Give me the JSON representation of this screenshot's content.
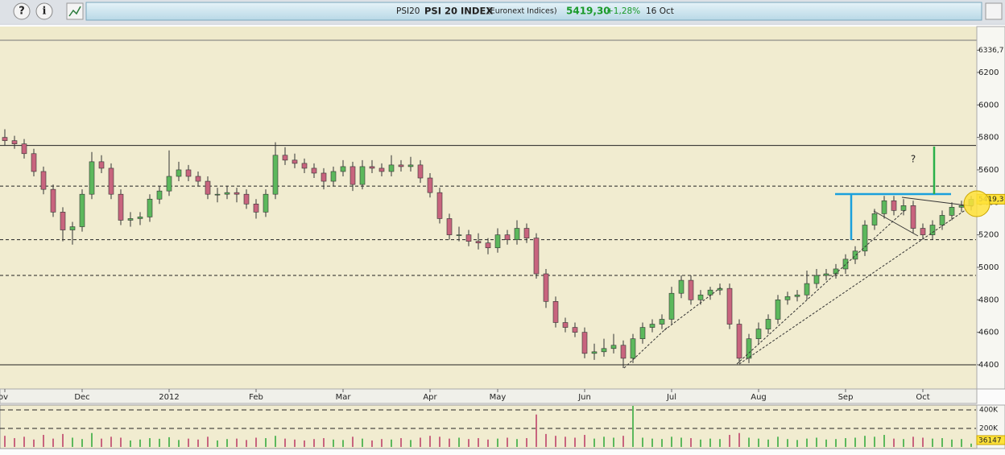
{
  "toolbar": {
    "help": "?",
    "info": "i"
  },
  "header": {
    "ticker": "PSI20",
    "name": "PSI 20 INDEX",
    "exchange": "(Euronext Indices)",
    "price": "5419,30",
    "change": "+1,28%",
    "date": "16 Oct"
  },
  "chart_data": {
    "type": "candlestick",
    "annotation": "?",
    "categories": [
      "ov",
      null,
      null,
      null,
      null,
      null,
      null,
      null,
      "Dec",
      null,
      null,
      null,
      null,
      null,
      null,
      null,
      null,
      "2012",
      null,
      null,
      null,
      null,
      null,
      null,
      null,
      null,
      "Feb",
      null,
      null,
      null,
      null,
      null,
      null,
      null,
      null,
      "Mar",
      null,
      null,
      null,
      null,
      null,
      null,
      null,
      null,
      "Apr",
      null,
      null,
      null,
      null,
      null,
      null,
      "May",
      null,
      null,
      null,
      null,
      null,
      null,
      null,
      null,
      "Jun",
      null,
      null,
      null,
      null,
      null,
      null,
      null,
      null,
      "Jul",
      null,
      null,
      null,
      null,
      null,
      null,
      null,
      null,
      "Aug",
      null,
      null,
      null,
      null,
      null,
      null,
      null,
      null,
      "Sep",
      null,
      null,
      null,
      null,
      null,
      null,
      null,
      "Oct",
      null,
      null,
      null,
      null,
      null
    ],
    "candles": [
      [
        5800,
        5850,
        5750,
        5780
      ],
      [
        5780,
        5810,
        5730,
        5760
      ],
      [
        5760,
        5790,
        5670,
        5700
      ],
      [
        5700,
        5730,
        5560,
        5590
      ],
      [
        5590,
        5620,
        5450,
        5480
      ],
      [
        5480,
        5510,
        5310,
        5340
      ],
      [
        5340,
        5370,
        5160,
        5230
      ],
      [
        5230,
        5280,
        5140,
        5250
      ],
      [
        5250,
        5480,
        5220,
        5450
      ],
      [
        5450,
        5710,
        5420,
        5650
      ],
      [
        5650,
        5690,
        5580,
        5610
      ],
      [
        5610,
        5640,
        5420,
        5450
      ],
      [
        5450,
        5480,
        5260,
        5290
      ],
      [
        5290,
        5340,
        5250,
        5300
      ],
      [
        5300,
        5340,
        5260,
        5310
      ],
      [
        5310,
        5450,
        5280,
        5420
      ],
      [
        5420,
        5500,
        5390,
        5470
      ],
      [
        5470,
        5720,
        5440,
        5560
      ],
      [
        5560,
        5650,
        5530,
        5600
      ],
      [
        5600,
        5630,
        5530,
        5560
      ],
      [
        5560,
        5590,
        5500,
        5530
      ],
      [
        5530,
        5560,
        5420,
        5450
      ],
      [
        5450,
        5490,
        5400,
        5450
      ],
      [
        5450,
        5500,
        5420,
        5460
      ],
      [
        5460,
        5490,
        5400,
        5450
      ],
      [
        5450,
        5480,
        5360,
        5390
      ],
      [
        5390,
        5420,
        5300,
        5340
      ],
      [
        5340,
        5480,
        5310,
        5450
      ],
      [
        5450,
        5770,
        5420,
        5690
      ],
      [
        5690,
        5740,
        5630,
        5660
      ],
      [
        5660,
        5700,
        5610,
        5640
      ],
      [
        5640,
        5670,
        5580,
        5610
      ],
      [
        5610,
        5640,
        5550,
        5580
      ],
      [
        5580,
        5610,
        5480,
        5530
      ],
      [
        5530,
        5620,
        5500,
        5590
      ],
      [
        5590,
        5660,
        5560,
        5620
      ],
      [
        5620,
        5650,
        5470,
        5510
      ],
      [
        5510,
        5660,
        5480,
        5620
      ],
      [
        5620,
        5660,
        5580,
        5610
      ],
      [
        5610,
        5640,
        5560,
        5590
      ],
      [
        5590,
        5690,
        5560,
        5630
      ],
      [
        5630,
        5660,
        5590,
        5620
      ],
      [
        5620,
        5680,
        5590,
        5630
      ],
      [
        5630,
        5660,
        5520,
        5550
      ],
      [
        5550,
        5580,
        5430,
        5460
      ],
      [
        5460,
        5490,
        5270,
        5300
      ],
      [
        5300,
        5330,
        5170,
        5200
      ],
      [
        5200,
        5250,
        5160,
        5200
      ],
      [
        5200,
        5230,
        5130,
        5160
      ],
      [
        5160,
        5210,
        5110,
        5150
      ],
      [
        5150,
        5180,
        5080,
        5120
      ],
      [
        5120,
        5240,
        5090,
        5200
      ],
      [
        5200,
        5230,
        5140,
        5170
      ],
      [
        5170,
        5290,
        5140,
        5240
      ],
      [
        5240,
        5270,
        5150,
        5180
      ],
      [
        5180,
        5210,
        4930,
        4960
      ],
      [
        4960,
        4990,
        4750,
        4790
      ],
      [
        4790,
        4820,
        4630,
        4660
      ],
      [
        4660,
        4690,
        4600,
        4630
      ],
      [
        4630,
        4660,
        4570,
        4600
      ],
      [
        4600,
        4630,
        4440,
        4470
      ],
      [
        4470,
        4530,
        4430,
        4480
      ],
      [
        4480,
        4560,
        4450,
        4500
      ],
      [
        4500,
        4590,
        4470,
        4520
      ],
      [
        4520,
        4550,
        4380,
        4440
      ],
      [
        4440,
        4590,
        4410,
        4560
      ],
      [
        4560,
        4660,
        4530,
        4630
      ],
      [
        4630,
        4680,
        4600,
        4650
      ],
      [
        4650,
        4710,
        4620,
        4680
      ],
      [
        4680,
        4880,
        4650,
        4840
      ],
      [
        4840,
        4950,
        4810,
        4920
      ],
      [
        4920,
        4950,
        4770,
        4800
      ],
      [
        4800,
        4860,
        4770,
        4830
      ],
      [
        4830,
        4880,
        4800,
        4860
      ],
      [
        4860,
        4900,
        4830,
        4870
      ],
      [
        4870,
        4900,
        4620,
        4650
      ],
      [
        4650,
        4680,
        4410,
        4440
      ],
      [
        4440,
        4590,
        4410,
        4560
      ],
      [
        4560,
        4660,
        4530,
        4620
      ],
      [
        4620,
        4710,
        4590,
        4680
      ],
      [
        4680,
        4830,
        4650,
        4800
      ],
      [
        4800,
        4850,
        4770,
        4820
      ],
      [
        4820,
        4860,
        4790,
        4830
      ],
      [
        4830,
        4980,
        4800,
        4900
      ],
      [
        4900,
        4990,
        4870,
        4950
      ],
      [
        4950,
        4990,
        4920,
        4960
      ],
      [
        4960,
        5020,
        4930,
        4990
      ],
      [
        4990,
        5080,
        4960,
        5050
      ],
      [
        5050,
        5130,
        5020,
        5100
      ],
      [
        5100,
        5290,
        5070,
        5260
      ],
      [
        5260,
        5360,
        5230,
        5330
      ],
      [
        5330,
        5440,
        5300,
        5410
      ],
      [
        5410,
        5440,
        5320,
        5350
      ],
      [
        5350,
        5420,
        5320,
        5380
      ],
      [
        5380,
        5410,
        5210,
        5240
      ],
      [
        5240,
        5270,
        5170,
        5200
      ],
      [
        5200,
        5290,
        5170,
        5260
      ],
      [
        5260,
        5350,
        5230,
        5320
      ],
      [
        5320,
        5400,
        5290,
        5370
      ],
      [
        5370,
        5410,
        5340,
        5380
      ],
      [
        5380,
        5440,
        5350,
        5419.3
      ]
    ],
    "up_color": "#5cb85c",
    "down_color": "#c8647e",
    "ylim": [
      4251,
      6398
    ],
    "yticks": [
      4400,
      4600,
      4800,
      5000,
      5200,
      5400,
      5600,
      5800,
      6000,
      6200,
      {
        "value": 6336.7,
        "label": "6336,7"
      }
    ],
    "price_tag": {
      "value": 5419.3,
      "label": "5419,3"
    },
    "levels": [
      {
        "value": 5750,
        "style": "solid"
      },
      {
        "value": 5500,
        "style": "dashed"
      },
      {
        "value": 5170,
        "style": "dashed"
      },
      {
        "value": 4950,
        "style": "dashed"
      },
      {
        "value": 4400,
        "style": "solid"
      }
    ],
    "volume": [
      120000,
      95000,
      110000,
      80000,
      130000,
      90000,
      140000,
      100000,
      85000,
      150000,
      90000,
      110000,
      100000,
      70000,
      80000,
      95000,
      88000,
      105000,
      75000,
      90000,
      80000,
      110000,
      70000,
      85000,
      90000,
      75000,
      100000,
      95000,
      120000,
      90000,
      80000,
      70000,
      85000,
      95000,
      80000,
      75000,
      110000,
      90000,
      70000,
      85000,
      80000,
      95000,
      75000,
      100000,
      120000,
      110000,
      90000,
      100000,
      85000,
      95000,
      80000,
      90000,
      100000,
      85000,
      95000,
      350000,
      140000,
      120000,
      110000,
      100000,
      130000,
      90000,
      110000,
      100000,
      120000,
      470000,
      100000,
      90000,
      85000,
      110000,
      100000,
      95000,
      80000,
      90000,
      85000,
      130000,
      150000,
      100000,
      90000,
      80000,
      110000,
      85000,
      75000,
      90000,
      100000,
      80000,
      85000,
      95000,
      100000,
      120000,
      110000,
      130000,
      90000,
      85000,
      110000,
      100000,
      90000,
      95000,
      80000,
      85000,
      36147
    ],
    "volume_ylim": [
      0,
      443000
    ],
    "volume_ticks": [
      {
        "value": 200000,
        "label": "200K"
      },
      {
        "value": 400000,
        "label": "400K"
      }
    ]
  }
}
